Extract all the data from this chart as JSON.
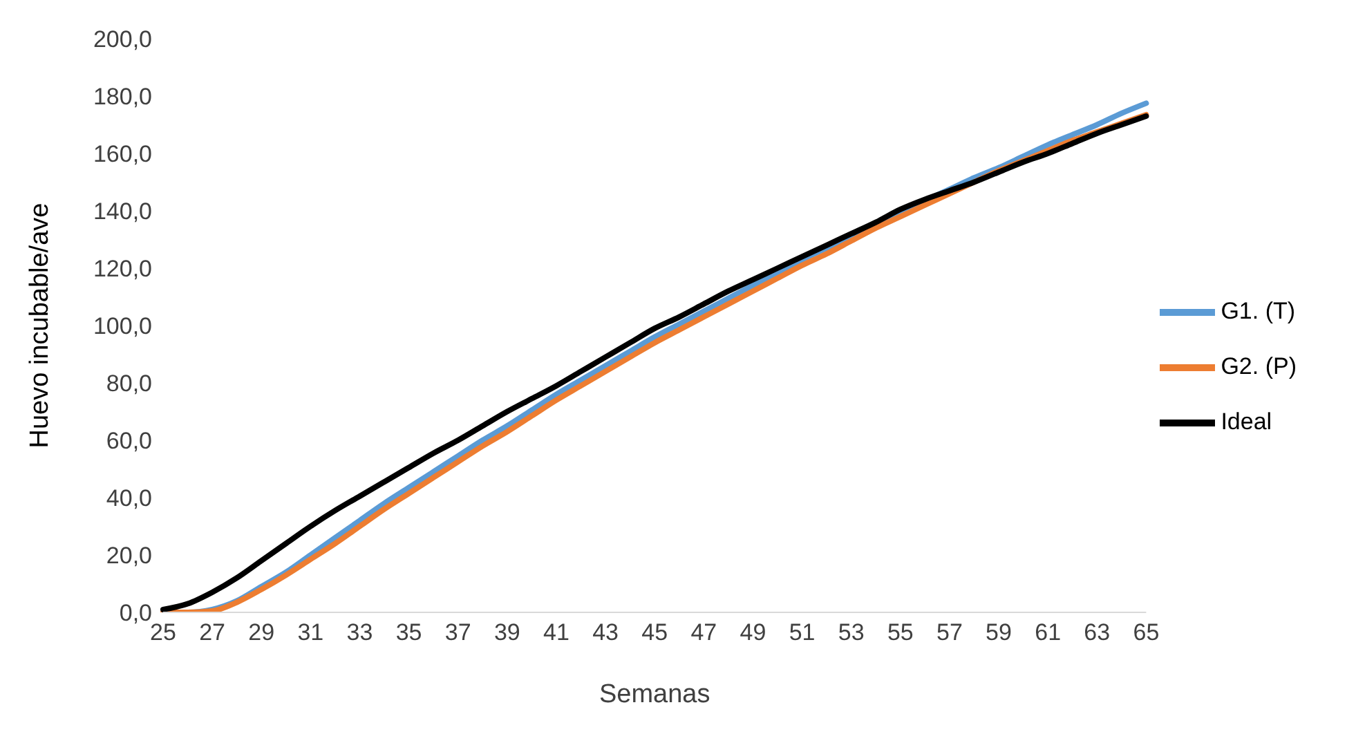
{
  "chart_data": {
    "type": "line",
    "xlabel": "Semanas",
    "ylabel": "Huevo incubable/ave",
    "categories": [
      "25",
      null,
      "27",
      null,
      "29",
      null,
      "31",
      null,
      "33",
      null,
      "35",
      null,
      "37",
      null,
      "39",
      null,
      "41",
      null,
      "43",
      null,
      "45",
      null,
      "47",
      null,
      "49",
      null,
      "51",
      null,
      "53",
      null,
      "55",
      null,
      "57",
      null,
      "59",
      null,
      "61",
      null,
      "63",
      null,
      "65"
    ],
    "series": [
      {
        "name": "G1. (T)",
        "color": "#5b9bd5",
        "values": [
          0,
          0,
          1,
          4,
          9,
          14,
          20,
          26,
          32,
          38,
          43.5,
          49,
          54.5,
          60,
          65,
          70.5,
          76,
          81,
          86,
          91,
          96,
          100.5,
          105,
          109.5,
          114,
          118.5,
          123,
          127,
          131,
          135.5,
          139.5,
          143.5,
          147.5,
          151.5,
          155,
          159,
          163,
          166.5,
          170,
          174,
          177.5
        ]
      },
      {
        "name": "G2. (P)",
        "color": "#ed7d31",
        "values": [
          0,
          0,
          0.5,
          3.5,
          8,
          13,
          18.5,
          24,
          30,
          36,
          41.5,
          47,
          52.5,
          58,
          63,
          68.5,
          74,
          79,
          84,
          89,
          94,
          98.5,
          103,
          107.5,
          112,
          116.5,
          121,
          125,
          129.5,
          134,
          138,
          142,
          146,
          150,
          154,
          157.5,
          161,
          164.5,
          167.5,
          170.5,
          173.5
        ]
      },
      {
        "name": "Ideal",
        "color": "#000000",
        "values": [
          1,
          3,
          7,
          12,
          18,
          24,
          30,
          35.5,
          40.5,
          45.5,
          50.5,
          55.5,
          60,
          65,
          70,
          74.5,
          79,
          84,
          89,
          94,
          99,
          103,
          107.5,
          112,
          116,
          120,
          124,
          128,
          132,
          136,
          140.5,
          144,
          147,
          150,
          153.5,
          157,
          160,
          163.5,
          167,
          170,
          173
        ]
      }
    ],
    "ylim": [
      0,
      200
    ],
    "yticks": [
      {
        "value": 0,
        "label": "0,0"
      },
      {
        "value": 20,
        "label": "20,0"
      },
      {
        "value": 40,
        "label": "40,0"
      },
      {
        "value": 60,
        "label": "60,0"
      },
      {
        "value": 80,
        "label": "80,0"
      },
      {
        "value": 100,
        "label": "100,0"
      },
      {
        "value": 120,
        "label": "120,0"
      },
      {
        "value": 140,
        "label": "140,0"
      },
      {
        "value": 160,
        "label": "160,0"
      },
      {
        "value": 180,
        "label": "180,0"
      },
      {
        "value": 200,
        "label": "200,0"
      }
    ],
    "legend": "right",
    "grid": false,
    "marker": "none",
    "line_style": "solid"
  }
}
